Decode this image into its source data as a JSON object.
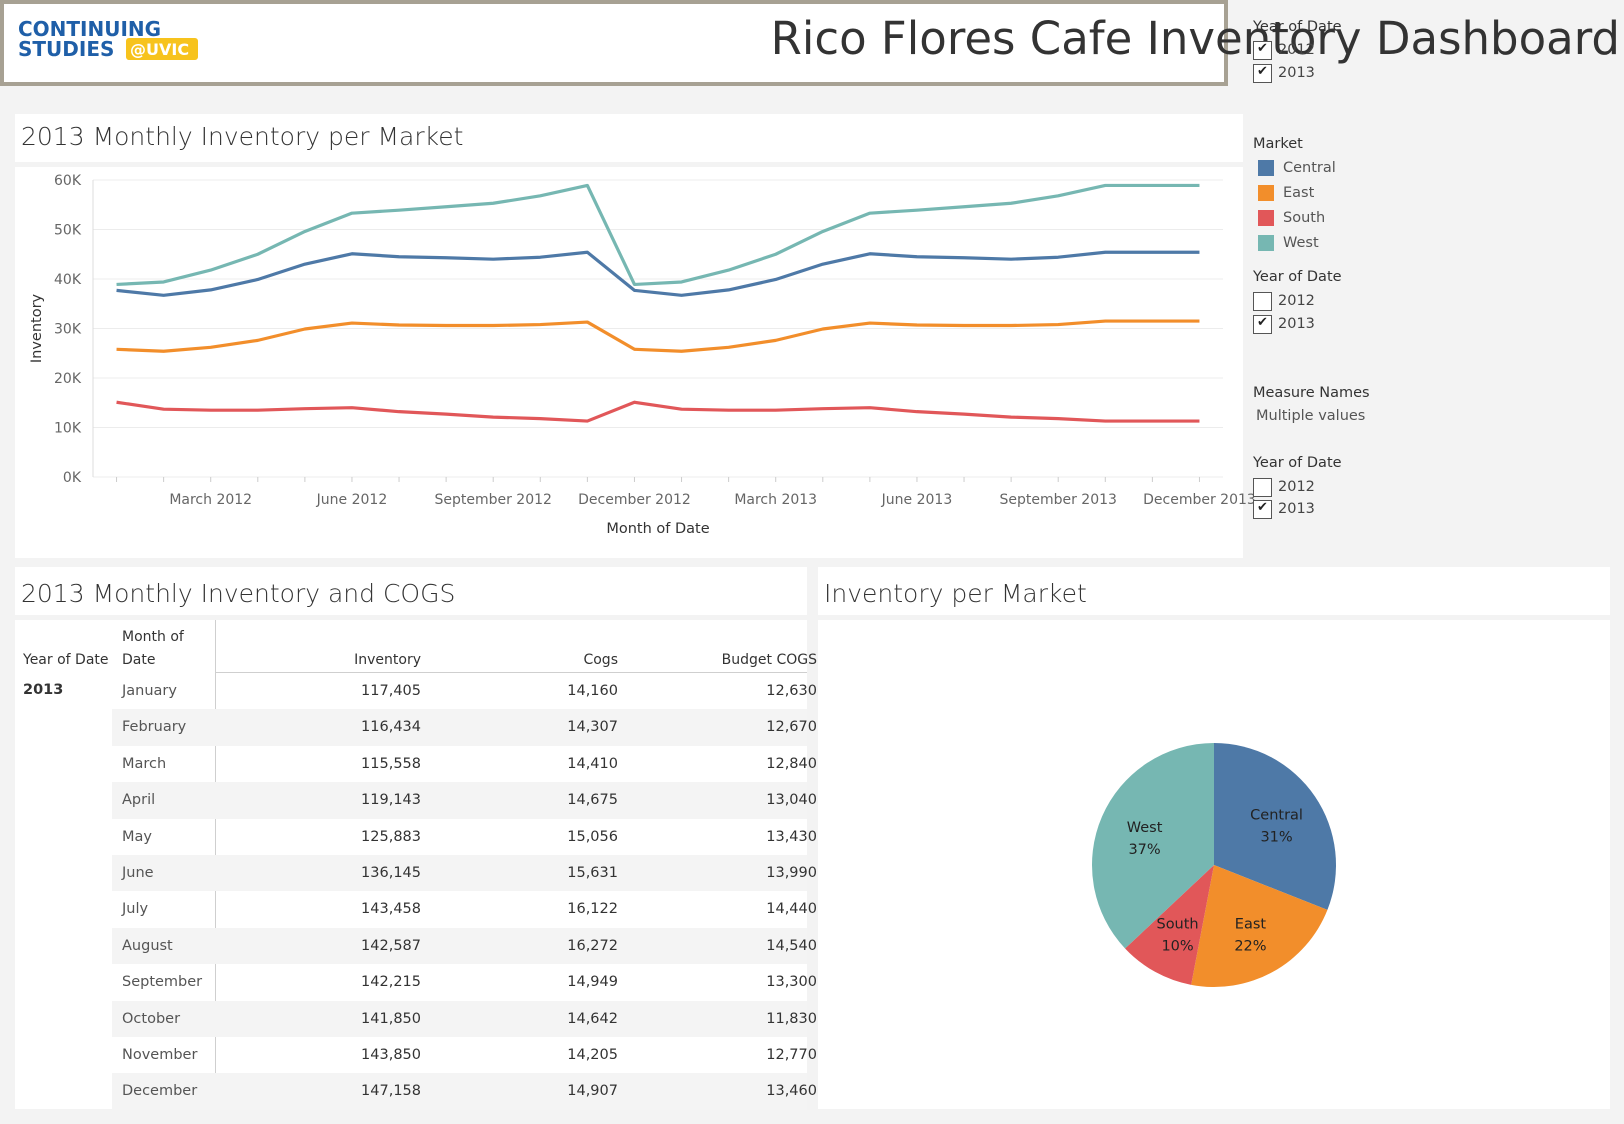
{
  "header": {
    "title": "Rico Flores Cafe Inventory Dashboard",
    "logo_line1": "CONTINUING",
    "logo_line2": "STUDIES",
    "logo_tag": "@UVIC"
  },
  "colors": {
    "Central": "#4e79a7",
    "East": "#f28e2b",
    "South": "#e15759",
    "West": "#76b7b2"
  },
  "line_section": {
    "title": "2013 Monthly Inventory per Market"
  },
  "table_section": {
    "title": "2013 Monthly Inventory and COGS"
  },
  "pie_section": {
    "title": "Inventory per Market"
  },
  "filters": {
    "year1": {
      "title": "Year of Date",
      "options": [
        {
          "label": "2012",
          "checked": true
        },
        {
          "label": "2013",
          "checked": true
        }
      ]
    },
    "market": {
      "title": "Market",
      "items": [
        "Central",
        "East",
        "South",
        "West"
      ]
    },
    "year2": {
      "title": "Year of Date",
      "options": [
        {
          "label": "2012",
          "checked": false
        },
        {
          "label": "2013",
          "checked": true
        }
      ]
    },
    "measure": {
      "title": "Measure Names",
      "value": "Multiple values"
    },
    "year3": {
      "title": "Year of Date",
      "options": [
        {
          "label": "2012",
          "checked": false
        },
        {
          "label": "2013",
          "checked": true
        }
      ]
    }
  },
  "table": {
    "headers": {
      "year": "Year of Date",
      "month_line1": "Month of",
      "month_line2": "Date",
      "inventory": "Inventory",
      "cogs": "Cogs",
      "budget": "Budget COGS"
    },
    "year": "2013",
    "rows": [
      {
        "month": "January",
        "inventory": "117,405",
        "cogs": "14,160",
        "budget": "12,630"
      },
      {
        "month": "February",
        "inventory": "116,434",
        "cogs": "14,307",
        "budget": "12,670"
      },
      {
        "month": "March",
        "inventory": "115,558",
        "cogs": "14,410",
        "budget": "12,840"
      },
      {
        "month": "April",
        "inventory": "119,143",
        "cogs": "14,675",
        "budget": "13,040"
      },
      {
        "month": "May",
        "inventory": "125,883",
        "cogs": "15,056",
        "budget": "13,430"
      },
      {
        "month": "June",
        "inventory": "136,145",
        "cogs": "15,631",
        "budget": "13,990"
      },
      {
        "month": "July",
        "inventory": "143,458",
        "cogs": "16,122",
        "budget": "14,440"
      },
      {
        "month": "August",
        "inventory": "142,587",
        "cogs": "16,272",
        "budget": "14,540"
      },
      {
        "month": "September",
        "inventory": "142,215",
        "cogs": "14,949",
        "budget": "13,300"
      },
      {
        "month": "October",
        "inventory": "141,850",
        "cogs": "14,642",
        "budget": "11,830"
      },
      {
        "month": "November",
        "inventory": "143,850",
        "cogs": "14,205",
        "budget": "12,770"
      },
      {
        "month": "December",
        "inventory": "147,158",
        "cogs": "14,907",
        "budget": "13,460"
      }
    ]
  },
  "chart_data": [
    {
      "type": "line",
      "title": "2013 Monthly Inventory per Market",
      "xlabel": "Month of Date",
      "ylabel": "Inventory",
      "ylim": [
        0,
        60000
      ],
      "yticks": [
        0,
        10000,
        20000,
        30000,
        40000,
        50000,
        60000
      ],
      "ytick_labels": [
        "0K",
        "10K",
        "20K",
        "30K",
        "40K",
        "50K",
        "60K"
      ],
      "x": [
        "January 2012",
        "February 2012",
        "March 2012",
        "April 2012",
        "May 2012",
        "June 2012",
        "July 2012",
        "August 2012",
        "September 2012",
        "October 2012",
        "November 2012",
        "December 2012",
        "January 2013",
        "February 2013",
        "March 2013",
        "April 2013",
        "May 2013",
        "June 2013",
        "July 2013",
        "August 2013",
        "September 2013",
        "October 2013",
        "November 2013",
        "December 2013"
      ],
      "xtick_labels": [
        {
          "index": 2,
          "label": "March 2012"
        },
        {
          "index": 5,
          "label": "June 2012"
        },
        {
          "index": 8,
          "label": "September 2012"
        },
        {
          "index": 11,
          "label": "December 2012"
        },
        {
          "index": 14,
          "label": "March 2013"
        },
        {
          "index": 17,
          "label": "June 2013"
        },
        {
          "index": 20,
          "label": "September 2013"
        },
        {
          "index": 23,
          "label": "December 2013"
        }
      ],
      "grid": true,
      "series": [
        {
          "name": "Central",
          "values": [
            37700,
            36700,
            37800,
            39900,
            43000,
            45100,
            44500,
            44300,
            44000,
            44400,
            45400,
            37700,
            36700,
            37800,
            39900,
            43000,
            45100,
            44500,
            44300,
            44000,
            44400,
            45400,
            45400,
            45400
          ]
        },
        {
          "name": "East",
          "values": [
            25800,
            25400,
            26200,
            27600,
            29900,
            31100,
            30700,
            30600,
            30600,
            30800,
            31300,
            25800,
            25400,
            26200,
            27600,
            29900,
            31100,
            30700,
            30600,
            30600,
            30800,
            31500,
            31500,
            31500
          ]
        },
        {
          "name": "South",
          "values": [
            15100,
            13700,
            13500,
            13500,
            13800,
            14000,
            13200,
            12700,
            12100,
            11800,
            11300,
            15100,
            13700,
            13500,
            13500,
            13800,
            14000,
            13200,
            12700,
            12100,
            11800,
            11300,
            11300,
            11300
          ]
        },
        {
          "name": "West",
          "values": [
            38900,
            39400,
            41800,
            45000,
            49600,
            53300,
            53900,
            54600,
            55300,
            56800,
            58900,
            38900,
            39400,
            41800,
            45000,
            49600,
            53300,
            53900,
            54600,
            55300,
            56800,
            58900,
            58900,
            58900
          ]
        }
      ]
    },
    {
      "type": "pie",
      "title": "Inventory per Market",
      "slices": [
        {
          "name": "Central",
          "percent": 31,
          "label": "31%"
        },
        {
          "name": "East",
          "percent": 22,
          "label": "22%"
        },
        {
          "name": "South",
          "percent": 10,
          "label": "10%"
        },
        {
          "name": "West",
          "percent": 37,
          "label": "37%"
        }
      ]
    }
  ]
}
